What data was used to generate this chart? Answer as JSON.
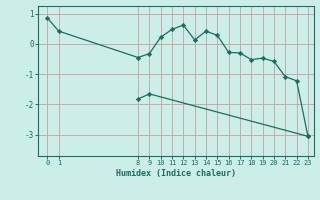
{
  "xlabel": "Humidex (Indice chaleur)",
  "bg_color": "#cceee8",
  "line_color": "#1a6e62",
  "grid_color": "#c8a8a8",
  "upper_line": {
    "x": [
      0,
      1,
      8,
      9,
      10,
      11,
      12,
      13,
      14,
      15,
      16,
      17,
      18,
      19,
      20,
      21,
      22,
      23
    ],
    "y": [
      0.85,
      0.42,
      -0.45,
      -0.32,
      0.22,
      0.48,
      0.62,
      0.13,
      0.42,
      0.28,
      -0.28,
      -0.3,
      -0.52,
      -0.47,
      -0.58,
      -1.08,
      -1.22,
      -3.05
    ]
  },
  "lower_line": {
    "x": [
      8,
      9,
      23
    ],
    "y": [
      -1.82,
      -1.65,
      -3.05
    ]
  },
  "xticks": [
    0,
    1,
    8,
    9,
    10,
    11,
    12,
    13,
    14,
    15,
    16,
    17,
    18,
    19,
    20,
    21,
    22,
    23
  ],
  "yticks": [
    1,
    0,
    -1,
    -2,
    -3
  ],
  "ylim": [
    -3.7,
    1.25
  ],
  "xlim": [
    -0.8,
    23.5
  ]
}
